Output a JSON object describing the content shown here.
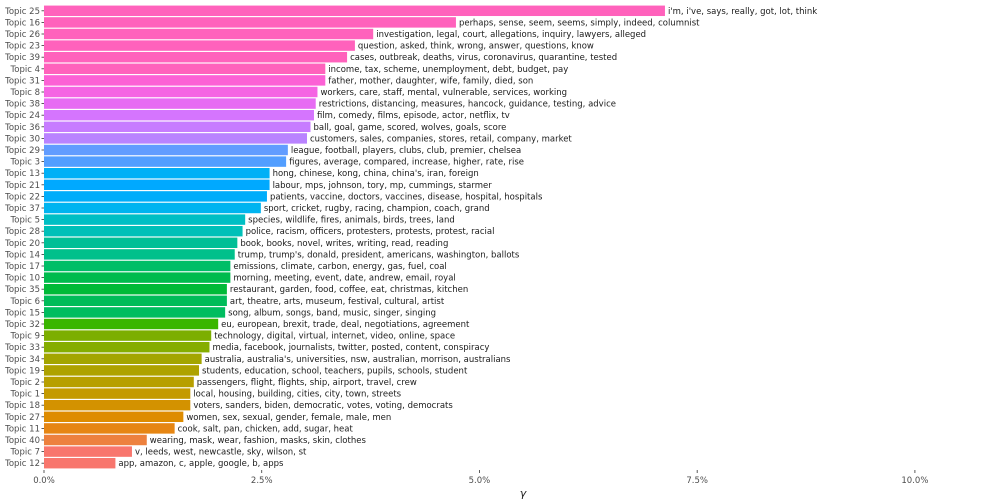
{
  "chart_data": {
    "type": "bar",
    "orientation": "horizontal",
    "xlabel": "γ",
    "ylabel": "",
    "xlim": [
      0,
      0.11
    ],
    "x_ticks": [
      0,
      0.025,
      0.05,
      0.075,
      0.1
    ],
    "x_tick_labels": [
      "0.0%",
      "2.5%",
      "5.0%",
      "7.5%",
      "10.0%"
    ],
    "grid": false,
    "legend": "none",
    "categories": [
      "Topic 25",
      "Topic 16",
      "Topic 26",
      "Topic 23",
      "Topic 39",
      "Topic 4",
      "Topic 31",
      "Topic 8",
      "Topic 38",
      "Topic 24",
      "Topic 36",
      "Topic 30",
      "Topic 29",
      "Topic 3",
      "Topic 13",
      "Topic 21",
      "Topic 22",
      "Topic 37",
      "Topic 5",
      "Topic 28",
      "Topic 20",
      "Topic 14",
      "Topic 17",
      "Topic 10",
      "Topic 35",
      "Topic 6",
      "Topic 15",
      "Topic 32",
      "Topic 9",
      "Topic 33",
      "Topic 34",
      "Topic 19",
      "Topic 2",
      "Topic 1",
      "Topic 18",
      "Topic 27",
      "Topic 11",
      "Topic 40",
      "Topic 7",
      "Topic 12"
    ],
    "values": [
      0.0713,
      0.0473,
      0.0378,
      0.0357,
      0.0348,
      0.0323,
      0.0323,
      0.0314,
      0.0312,
      0.031,
      0.0306,
      0.0302,
      0.028,
      0.0278,
      0.0259,
      0.0259,
      0.0256,
      0.0249,
      0.0231,
      0.0228,
      0.0222,
      0.0219,
      0.0214,
      0.0214,
      0.021,
      0.021,
      0.0208,
      0.02,
      0.0192,
      0.019,
      0.0181,
      0.0178,
      0.0172,
      0.0168,
      0.0168,
      0.016,
      0.015,
      0.0118,
      0.0101,
      0.0082
    ],
    "labels": [
      "i'm, i've, says, really, got, lot, think",
      "perhaps, sense, seem, seems, simply, indeed, columnist",
      "investigation, legal, court, allegations, inquiry, lawyers, alleged",
      "question, asked, think, wrong, answer, questions, know",
      "cases, outbreak, deaths, virus, coronavirus, quarantine, tested",
      "income, tax, scheme, unemployment, debt, budget, pay",
      "father, mother, daughter, wife, family, died, son",
      "workers, care, staff, mental, vulnerable, services, working",
      "restrictions, distancing, measures, hancock, guidance, testing, advice",
      "film, comedy, films, episode, actor, netflix, tv",
      "ball, goal, game, scored, wolves, goals, score",
      "customers, sales, companies, stores, retail, company, market",
      "league, football, players, clubs, club, premier, chelsea",
      "figures, average, compared, increase, higher, rate, rise",
      "hong, chinese, kong, china, china's, iran, foreign",
      "labour, mps, johnson, tory, mp, cummings, starmer",
      "patients, vaccine, doctors, vaccines, disease, hospital, hospitals",
      "sport, cricket, rugby, racing, champion, coach, grand",
      "species, wildlife, fires, animals, birds, trees, land",
      "police, racism, officers, protesters, protests, protest, racial",
      "book, books, novel, writes, writing, read, reading",
      "trump, trump's, donald, president, americans, washington, ballots",
      "emissions, climate, carbon, energy, gas, fuel, coal",
      "morning, meeting, event, date, andrew, email, royal",
      "restaurant, garden, food, coffee, eat, christmas, kitchen",
      "art, theatre, arts, museum, festival, cultural, artist",
      "song, album, songs, band, music, singer, singing",
      "eu, european, brexit, trade, deal, negotiations, agreement",
      "technology, digital, virtual, internet, video, online, space",
      "media, facebook, journalists, twitter, posted, content, conspiracy",
      "australia, australia's, universities, nsw, australian, morrison, australians",
      "students, education, school, teachers, pupils, schools, student",
      "passengers, flight, flights, ship, airport, travel, crew",
      "local, housing, building, cities, city, town, streets",
      "voters, sanders, biden, democratic, votes, voting, democrats",
      "women, sex, sexual, gender, female, male, men",
      "cook, salt, pan, chicken, add, sugar, heat",
      "wearing, mask, wear, fashion, masks, skin, clothes",
      "v, leeds, west, newcastle, sky, wilson, st",
      "app, amazon, c, apple, google, b, apps"
    ],
    "colors": [
      "#FF62BC",
      "#FF62BC",
      "#FF62BC",
      "#FF62BC",
      "#FF62BC",
      "#FF62BC",
      "#FC61D5",
      "#F564E3",
      "#E76BF3",
      "#D575FE",
      "#C77CFF",
      "#B983FF",
      "#619CFF",
      "#529EFF",
      "#00B0F6",
      "#00A9FF",
      "#00ADFA",
      "#00B4F0",
      "#00BFC4",
      "#00C0B8",
      "#00BF96",
      "#00C08B",
      "#00BE67",
      "#00BB4E",
      "#00BA38",
      "#00BC59",
      "#00BD5F",
      "#39B600",
      "#7CAE00",
      "#85AD00",
      "#A3A500",
      "#AEA200",
      "#B79F00",
      "#C49A00",
      "#D39200",
      "#DE8C00",
      "#E68613",
      "#ED813E",
      "#F8766D",
      "#F8766D"
    ]
  }
}
